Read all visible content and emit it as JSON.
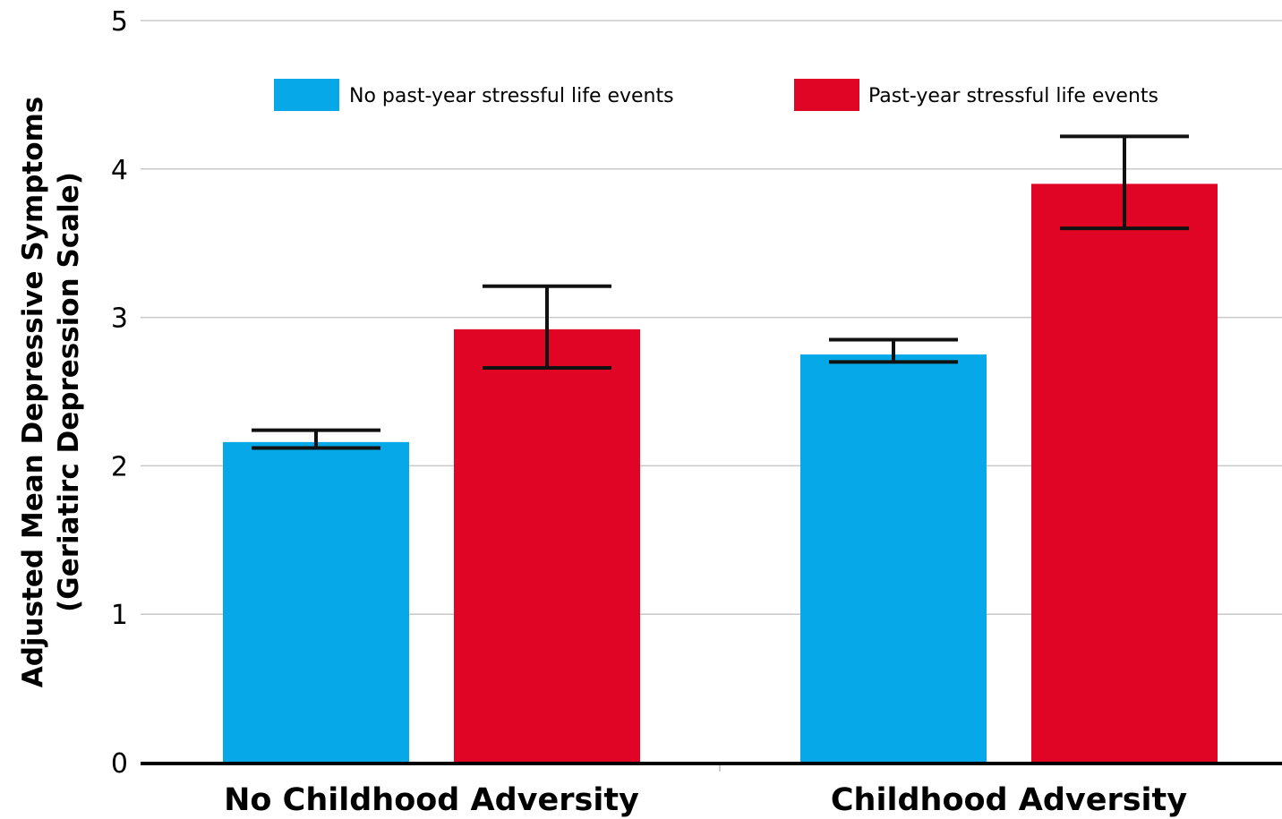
{
  "chart_data": {
    "type": "bar",
    "title": "",
    "xlabel": "",
    "ylabel": [
      "Adjusted Mean Depressive Symptoms",
      "(Geriatirc Depression Scale)"
    ],
    "categories": [
      "No Childhood Adversity",
      "Childhood Adversity"
    ],
    "ylim": [
      0,
      5
    ],
    "yticks": [
      "0",
      "1",
      "2",
      "3",
      "4",
      "5"
    ],
    "grid": true,
    "legend_position": "top",
    "series": [
      {
        "name": "No past-year stressful life events",
        "color": "#06a8e8",
        "values": [
          2.16,
          2.75
        ],
        "error_low": [
          2.12,
          2.7
        ],
        "error_high": [
          2.24,
          2.85
        ]
      },
      {
        "name": "Past-year stressful life events",
        "color": "#e00524",
        "values": [
          2.92,
          3.9
        ],
        "error_low": [
          2.66,
          3.6
        ],
        "error_high": [
          3.21,
          4.22
        ]
      }
    ]
  }
}
